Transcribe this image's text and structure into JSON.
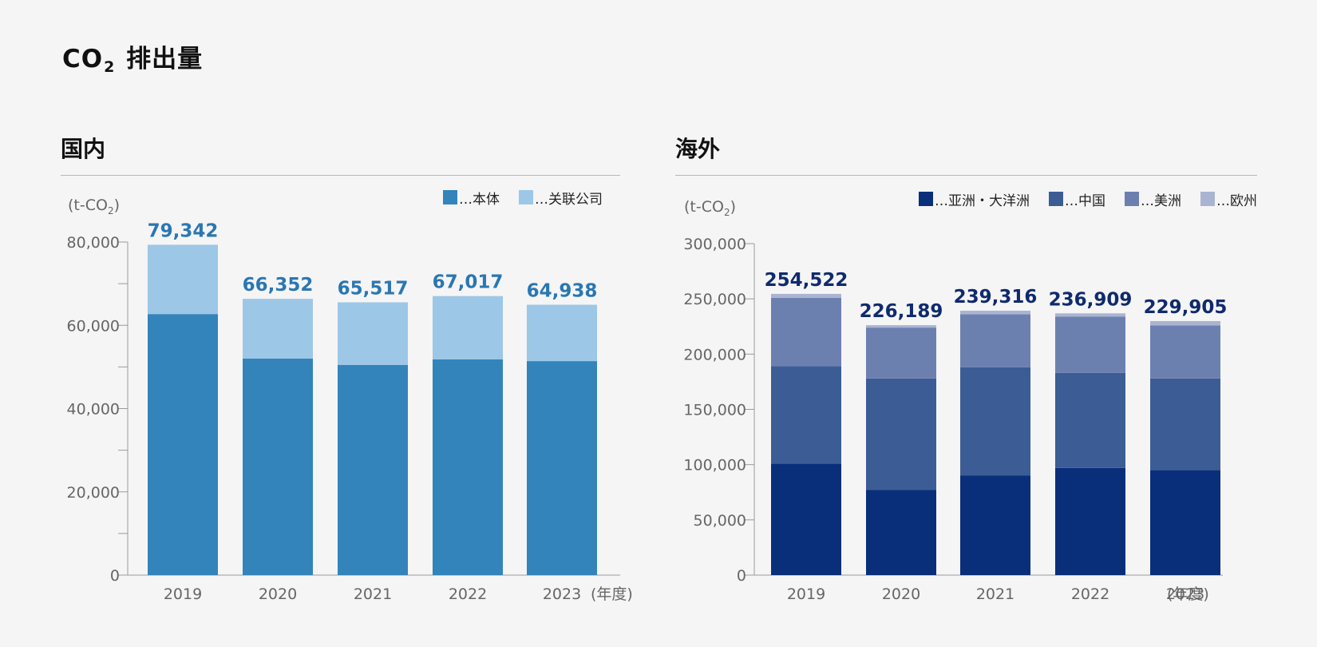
{
  "page_title": "CO2 排出量",
  "page_title_main": "CO",
  "page_title_sub": "2",
  "page_title_rest": "排出量",
  "chart_data": [
    {
      "type": "bar",
      "stacked": true,
      "title": "国内",
      "unit_label": "(t-CO2)",
      "unit_prefix": "(t-CO",
      "unit_sub": "2",
      "unit_suffix": ")",
      "x_unit": "(年度)",
      "categories": [
        "2019",
        "2020",
        "2021",
        "2022",
        "2023"
      ],
      "series": [
        {
          "name": "本体",
          "color": "#3384bb",
          "values": [
            62700,
            52000,
            50500,
            51800,
            51400
          ]
        },
        {
          "name": "关联公司",
          "color": "#9dc7e6",
          "values": [
            16642,
            14352,
            15017,
            15217,
            13538
          ]
        }
      ],
      "totals": [
        "79,342",
        "66,352",
        "65,517",
        "67,017",
        "64,938"
      ],
      "total_color": "#2a77b3",
      "ylim": [
        0,
        80000
      ],
      "yticks": [
        0,
        20000,
        40000,
        60000,
        80000
      ],
      "ytick_labels": [
        "0",
        "20,000",
        "40,000",
        "60,000",
        "80,000"
      ],
      "minor_step": 10000,
      "legend_position": "top-right",
      "legend_prefix": "…"
    },
    {
      "type": "bar",
      "stacked": true,
      "title": "海外",
      "unit_label": "(t-CO2)",
      "unit_prefix": "(t-CO",
      "unit_sub": "2",
      "unit_suffix": ")",
      "x_unit": "(年度)",
      "categories": [
        "2019",
        "2020",
        "2021",
        "2022",
        "2023"
      ],
      "series": [
        {
          "name": "亚洲・大洋洲",
          "color": "#0a2f7a",
          "values": [
            101000,
            77000,
            90000,
            97000,
            95000
          ]
        },
        {
          "name": "中国",
          "color": "#3c5c96",
          "values": [
            88000,
            101000,
            98000,
            86000,
            83000
          ]
        },
        {
          "name": "美洲",
          "color": "#6c80b0",
          "values": [
            62000,
            46000,
            48000,
            51000,
            48000
          ]
        },
        {
          "name": "欧州",
          "color": "#aab4d2",
          "values": [
            3522,
            2189,
            3316,
            2909,
            3905
          ]
        }
      ],
      "totals": [
        "254,522",
        "226,189",
        "239,316",
        "236,909",
        "229,905"
      ],
      "total_color": "#0f2a6e",
      "ylim": [
        0,
        300000
      ],
      "yticks": [
        0,
        50000,
        100000,
        150000,
        200000,
        250000,
        300000
      ],
      "ytick_labels": [
        "0",
        "50,000",
        "100,000",
        "150,000",
        "200,000",
        "250,000",
        "300,000"
      ],
      "minor_step": 0,
      "legend_position": "top-right",
      "legend_prefix": "…"
    }
  ]
}
